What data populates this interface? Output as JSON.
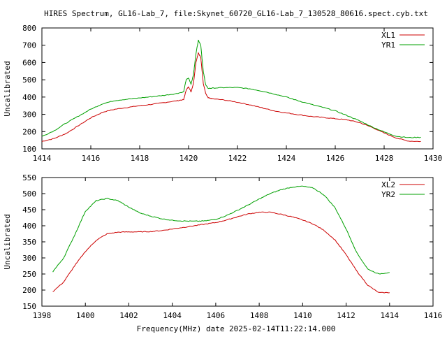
{
  "page": {
    "title": "HIRES Spectrum, GL16-Lab_7, file:Skynet_60720_GL16-Lab_7_130528_80616.spect.cyb.txt",
    "footer_label": "Frequency(MHz) date 2025-02-14T11:22:14.000"
  },
  "colors": {
    "red": "#cc0000",
    "green": "#00a000",
    "axis": "#000000",
    "background": "#ffffff"
  },
  "chart_data": [
    {
      "type": "line",
      "title": "HIRES Spectrum, GL16-Lab_7, file:Skynet_60720_GL16-Lab_7_130528_80616.spect.cyb.txt",
      "xlabel": "",
      "ylabel": "Uncalibrated",
      "xlim": [
        1414,
        1430
      ],
      "ylim": [
        100,
        800
      ],
      "x_ticks": [
        1414,
        1416,
        1418,
        1420,
        1422,
        1424,
        1426,
        1428,
        1430
      ],
      "y_ticks": [
        100,
        200,
        300,
        400,
        500,
        600,
        700,
        800
      ],
      "legend_position": "top-right",
      "grid": false,
      "series": [
        {
          "name": "XL1",
          "color": "#cc0000",
          "x": [
            1414.0,
            1414.5,
            1415.0,
            1415.5,
            1416.0,
            1416.5,
            1417.0,
            1417.5,
            1418.0,
            1418.5,
            1419.0,
            1419.5,
            1419.8,
            1419.9,
            1420.0,
            1420.1,
            1420.2,
            1420.3,
            1420.4,
            1420.5,
            1420.6,
            1420.7,
            1420.8,
            1421.0,
            1421.5,
            1422.0,
            1422.5,
            1423.0,
            1423.5,
            1424.0,
            1424.5,
            1425.0,
            1425.5,
            1426.0,
            1426.5,
            1427.0,
            1427.5,
            1428.0,
            1428.5,
            1429.0,
            1429.5
          ],
          "y": [
            143,
            160,
            190,
            235,
            280,
            313,
            330,
            340,
            350,
            358,
            368,
            378,
            385,
            440,
            460,
            430,
            480,
            600,
            655,
            630,
            480,
            420,
            395,
            390,
            382,
            370,
            355,
            338,
            320,
            308,
            298,
            288,
            282,
            275,
            268,
            252,
            225,
            192,
            163,
            145,
            143
          ]
        },
        {
          "name": "YR1",
          "color": "#00a000",
          "x": [
            1414.0,
            1414.5,
            1415.0,
            1415.5,
            1416.0,
            1416.5,
            1417.0,
            1417.5,
            1418.0,
            1418.5,
            1419.0,
            1419.5,
            1419.8,
            1419.9,
            1420.0,
            1420.1,
            1420.2,
            1420.3,
            1420.4,
            1420.5,
            1420.6,
            1420.7,
            1420.8,
            1421.0,
            1421.5,
            1422.0,
            1422.5,
            1423.0,
            1423.5,
            1424.0,
            1424.5,
            1425.0,
            1425.5,
            1426.0,
            1426.5,
            1427.0,
            1427.5,
            1428.0,
            1428.5,
            1429.0,
            1429.5
          ],
          "y": [
            172,
            205,
            250,
            290,
            330,
            362,
            380,
            388,
            395,
            402,
            410,
            420,
            430,
            500,
            510,
            475,
            530,
            650,
            730,
            700,
            550,
            470,
            450,
            452,
            455,
            455,
            448,
            435,
            418,
            400,
            378,
            358,
            340,
            320,
            292,
            262,
            228,
            198,
            173,
            165,
            167
          ]
        }
      ]
    },
    {
      "type": "line",
      "title": "",
      "xlabel": "Frequency(MHz) date 2025-02-14T11:22:14.000",
      "ylabel": "Uncalibrated",
      "xlim": [
        1398,
        1416
      ],
      "ylim": [
        150,
        550
      ],
      "x_ticks": [
        1398,
        1400,
        1402,
        1404,
        1406,
        1408,
        1410,
        1412,
        1414,
        1416
      ],
      "y_ticks": [
        150,
        200,
        250,
        300,
        350,
        400,
        450,
        500,
        550
      ],
      "legend_position": "top-right",
      "grid": false,
      "series": [
        {
          "name": "XL2",
          "color": "#cc0000",
          "x": [
            1398.5,
            1399.0,
            1399.5,
            1400.0,
            1400.5,
            1401.0,
            1401.5,
            1402.0,
            1402.5,
            1403.0,
            1403.5,
            1404.0,
            1404.5,
            1405.0,
            1405.5,
            1406.0,
            1406.5,
            1407.0,
            1407.5,
            1408.0,
            1408.5,
            1409.0,
            1409.5,
            1410.0,
            1410.5,
            1411.0,
            1411.5,
            1412.0,
            1412.5,
            1413.0,
            1413.5,
            1414.0
          ],
          "y": [
            195,
            225,
            275,
            320,
            355,
            375,
            380,
            381,
            381,
            382,
            385,
            390,
            395,
            400,
            405,
            410,
            418,
            428,
            437,
            442,
            442,
            436,
            428,
            418,
            405,
            385,
            355,
            310,
            258,
            215,
            192,
            192
          ]
        },
        {
          "name": "YR2",
          "color": "#00a000",
          "x": [
            1398.5,
            1399.0,
            1399.5,
            1400.0,
            1400.5,
            1401.0,
            1401.5,
            1402.0,
            1402.5,
            1403.0,
            1403.5,
            1404.0,
            1404.5,
            1405.0,
            1405.5,
            1406.0,
            1406.5,
            1407.0,
            1407.5,
            1408.0,
            1408.5,
            1409.0,
            1409.5,
            1410.0,
            1410.5,
            1411.0,
            1411.5,
            1412.0,
            1412.5,
            1413.0,
            1413.5,
            1414.0
          ],
          "y": [
            257,
            300,
            370,
            445,
            478,
            485,
            478,
            458,
            440,
            430,
            422,
            417,
            415,
            414,
            415,
            420,
            432,
            448,
            465,
            483,
            500,
            512,
            520,
            523,
            517,
            495,
            455,
            390,
            315,
            265,
            250,
            255
          ]
        }
      ]
    }
  ]
}
